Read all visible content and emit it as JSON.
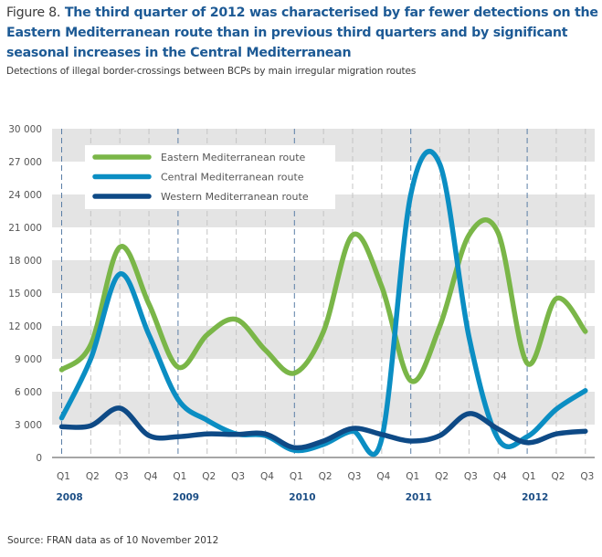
{
  "title": {
    "figure_label": "Figure 8.",
    "text": "The third quarter of 2012 was characterised by far fewer detections on the Eastern Mediterranean route than in previous third quarters and by significant seasonal increases in the Central Mediterranean"
  },
  "subtitle": "Detections of illegal border-crossings between BCPs by main irregular migration routes",
  "source": "Source: FRAN data as of 10 November 2012",
  "colors": {
    "eastern": "#7ab648",
    "central": "#0b8ec3",
    "western": "#0e4a86",
    "band": "#e4e4e4",
    "axis": "#888888",
    "year_grid": "#5a7ea6",
    "quarter_grid": "#c4c4c4"
  },
  "chart_data": {
    "type": "line",
    "title": "Detections of illegal border-crossings between BCPs by main irregular migration routes",
    "xlabel": "",
    "ylabel": "",
    "ylim": [
      0,
      30000
    ],
    "yticks": [
      0,
      3000,
      6000,
      9000,
      12000,
      15000,
      18000,
      21000,
      24000,
      27000,
      30000
    ],
    "ytick_labels": [
      "0",
      "3 000",
      "6 000",
      "9 000",
      "12 000",
      "15 000",
      "18 000",
      "21 000",
      "24 000",
      "27 000",
      "30 000"
    ],
    "grid": "alternating horizontal bands; dashed vertical lines per quarter",
    "legend_position": "top-left",
    "x": [
      "2008 Q1",
      "2008 Q2",
      "2008 Q3",
      "2008 Q4",
      "2009 Q1",
      "2009 Q2",
      "2009 Q3",
      "2009 Q4",
      "2010 Q1",
      "2010 Q2",
      "2010 Q3",
      "2010 Q4",
      "2011 Q1",
      "2011 Q2",
      "2011 Q3",
      "2011 Q4",
      "2012 Q1",
      "2012 Q2",
      "2012 Q3"
    ],
    "quarter_labels": [
      "Q1",
      "Q2",
      "Q3",
      "Q4",
      "Q1",
      "Q2",
      "Q3",
      "Q4",
      "Q1",
      "Q2",
      "Q3",
      "Q4",
      "Q1",
      "Q2",
      "Q3",
      "Q4",
      "Q1",
      "Q2",
      "Q3"
    ],
    "year_labels": [
      {
        "label": "2008",
        "index": 0
      },
      {
        "label": "2009",
        "index": 4
      },
      {
        "label": "2010",
        "index": 8
      },
      {
        "label": "2011",
        "index": 12
      },
      {
        "label": "2012",
        "index": 16
      }
    ],
    "series": [
      {
        "name": "Eastern Mediterranean route",
        "key": "eastern",
        "values": [
          8000,
          10300,
          19200,
          14000,
          8250,
          11200,
          12600,
          9800,
          7700,
          11500,
          20300,
          15600,
          7000,
          12000,
          20300,
          20500,
          8600,
          14500,
          11500
        ]
      },
      {
        "name": "Central Mediterranean route",
        "key": "central",
        "values": [
          3600,
          9000,
          16750,
          11200,
          5300,
          3400,
          2150,
          2000,
          650,
          1200,
          2400,
          1700,
          24000,
          26750,
          11000,
          1700,
          1900,
          4400,
          6100
        ]
      },
      {
        "name": "Western Mediterranean route",
        "key": "western",
        "values": [
          2800,
          2900,
          4500,
          2000,
          1900,
          2150,
          2100,
          2150,
          900,
          1500,
          2650,
          2100,
          1500,
          2000,
          4000,
          2600,
          1350,
          2150,
          2400
        ]
      }
    ]
  }
}
